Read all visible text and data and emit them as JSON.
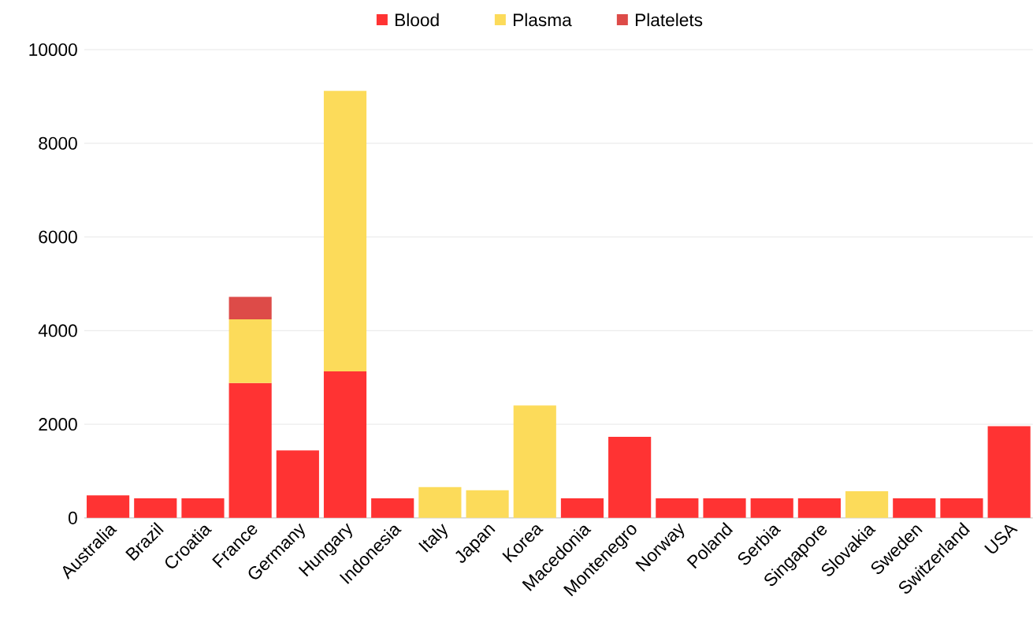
{
  "chart_data": {
    "type": "bar",
    "stacked": true,
    "categories": [
      "Australia",
      "Brazil",
      "Croatia",
      "France",
      "Germany",
      "Hungary",
      "Indonesia",
      "Italy",
      "Japan",
      "Korea",
      "Macedonia",
      "Montenegro",
      "Norway",
      "Poland",
      "Serbia",
      "Singapore",
      "Slovakia",
      "Sweden",
      "Switzerland",
      "USA"
    ],
    "series": [
      {
        "name": "Blood",
        "color": "#ff3333",
        "values": [
          480,
          420,
          420,
          2880,
          1440,
          3130,
          420,
          null,
          null,
          null,
          420,
          1730,
          420,
          420,
          420,
          420,
          null,
          420,
          420,
          1960
        ]
      },
      {
        "name": "Plasma",
        "color": "#fcdb5a",
        "values": [
          null,
          null,
          null,
          1360,
          null,
          5990,
          null,
          660,
          590,
          2400,
          null,
          null,
          null,
          null,
          null,
          null,
          570,
          null,
          null,
          null
        ]
      },
      {
        "name": "Platelets",
        "color": "#dd4b48",
        "values": [
          null,
          null,
          null,
          480,
          null,
          null,
          null,
          null,
          null,
          null,
          null,
          null,
          null,
          null,
          null,
          null,
          null,
          null,
          null,
          null
        ]
      }
    ],
    "ylim": [
      0,
      10000
    ],
    "yticks": [
      0,
      2000,
      4000,
      6000,
      8000,
      10000
    ],
    "grid": "y",
    "legend": "top"
  }
}
